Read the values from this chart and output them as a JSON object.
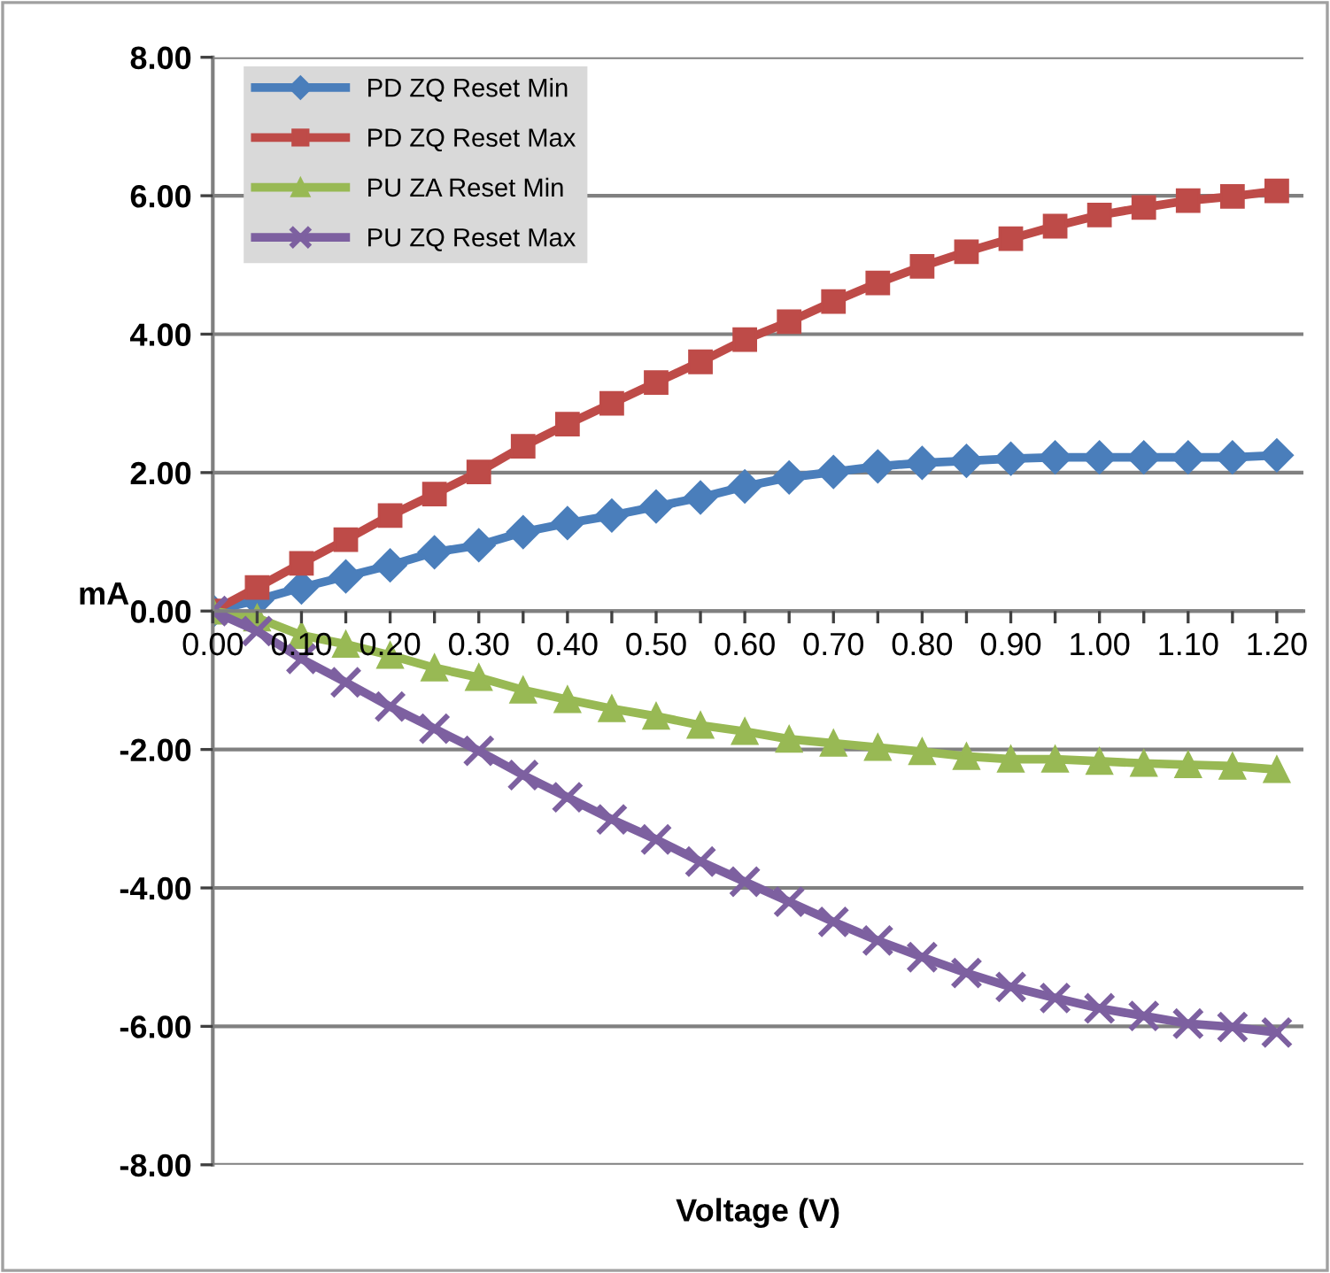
{
  "chart_data": {
    "type": "line",
    "xlabel": "Voltage (V)",
    "ylabel": "mA",
    "x": [
      0,
      0.05,
      0.1,
      0.15,
      0.2,
      0.25,
      0.3,
      0.35,
      0.4,
      0.45,
      0.5,
      0.55,
      0.6,
      0.65,
      0.7,
      0.75,
      0.8,
      0.85,
      0.9,
      0.95,
      1.0,
      1.05,
      1.1,
      1.15,
      1.2
    ],
    "series": [
      {
        "name": "PD ZQ Reset Min",
        "color": "#4a7ebb",
        "marker": "diamond",
        "values": [
          0,
          0.16,
          0.34,
          0.5,
          0.66,
          0.85,
          0.95,
          1.14,
          1.27,
          1.38,
          1.51,
          1.64,
          1.8,
          1.93,
          2.01,
          2.09,
          2.14,
          2.17,
          2.2,
          2.22,
          2.22,
          2.22,
          2.22,
          2.22,
          2.25
        ]
      },
      {
        "name": "PD ZQ Reset Max",
        "color": "#be4b48",
        "marker": "square",
        "values": [
          0,
          0.34,
          0.69,
          1.03,
          1.38,
          1.69,
          2.01,
          2.38,
          2.7,
          3.0,
          3.3,
          3.6,
          3.92,
          4.18,
          4.47,
          4.74,
          4.98,
          5.19,
          5.38,
          5.56,
          5.72,
          5.83,
          5.93,
          5.99,
          6.07
        ]
      },
      {
        "name": "PU ZA Reset Min",
        "color": "#98b954",
        "marker": "triangle",
        "values": [
          0,
          -0.1,
          -0.35,
          -0.48,
          -0.64,
          -0.82,
          -0.96,
          -1.14,
          -1.28,
          -1.41,
          -1.52,
          -1.65,
          -1.74,
          -1.85,
          -1.91,
          -1.97,
          -2.03,
          -2.1,
          -2.14,
          -2.14,
          -2.17,
          -2.2,
          -2.22,
          -2.24,
          -2.29
        ]
      },
      {
        "name": "PU ZQ Reset Max",
        "color": "#7d60a0",
        "marker": "cross",
        "values": [
          0,
          -0.29,
          -0.69,
          -1.03,
          -1.38,
          -1.7,
          -2.02,
          -2.37,
          -2.69,
          -3.01,
          -3.3,
          -3.62,
          -3.91,
          -4.2,
          -4.49,
          -4.76,
          -5.0,
          -5.23,
          -5.43,
          -5.59,
          -5.74,
          -5.85,
          -5.96,
          -6.01,
          -6.09
        ]
      }
    ],
    "xlim": [
      0,
      1.23
    ],
    "xticks": [
      {
        "value": 0,
        "label": "0.00"
      },
      {
        "value": 0.05,
        "label": null
      },
      {
        "value": 0.1,
        "label": "0.10"
      },
      {
        "value": 0.15,
        "label": null
      },
      {
        "value": 0.2,
        "label": "0.20"
      },
      {
        "value": 0.25,
        "label": null
      },
      {
        "value": 0.3,
        "label": "0.30"
      },
      {
        "value": 0.35,
        "label": null
      },
      {
        "value": 0.4,
        "label": "0.40"
      },
      {
        "value": 0.45,
        "label": null
      },
      {
        "value": 0.5,
        "label": "0.50"
      },
      {
        "value": 0.55,
        "label": null
      },
      {
        "value": 0.6,
        "label": "0.60"
      },
      {
        "value": 0.65,
        "label": null
      },
      {
        "value": 0.7,
        "label": "0.70"
      },
      {
        "value": 0.75,
        "label": null
      },
      {
        "value": 0.8,
        "label": "0.80"
      },
      {
        "value": 0.85,
        "label": null
      },
      {
        "value": 0.9,
        "label": "0.90"
      },
      {
        "value": 0.95,
        "label": null
      },
      {
        "value": 1.0,
        "label": "1.00"
      },
      {
        "value": 1.05,
        "label": null
      },
      {
        "value": 1.1,
        "label": "1.10"
      },
      {
        "value": 1.15,
        "label": null
      },
      {
        "value": 1.2,
        "label": "1.20"
      }
    ],
    "ylim": [
      -8,
      8
    ],
    "yticks": [
      {
        "value": -8,
        "label": "-8.00"
      },
      {
        "value": -6,
        "label": "-6.00"
      },
      {
        "value": -4,
        "label": "-4.00"
      },
      {
        "value": -2,
        "label": "-2.00"
      },
      {
        "value": 0,
        "label": "0.00"
      },
      {
        "value": 2,
        "label": "2.00"
      },
      {
        "value": 4,
        "label": "4.00"
      },
      {
        "value": 6,
        "label": "6.00"
      },
      {
        "value": 8,
        "label": "8.00"
      }
    ],
    "grid": "y",
    "legend": "top left",
    "line_style": "solid"
  }
}
